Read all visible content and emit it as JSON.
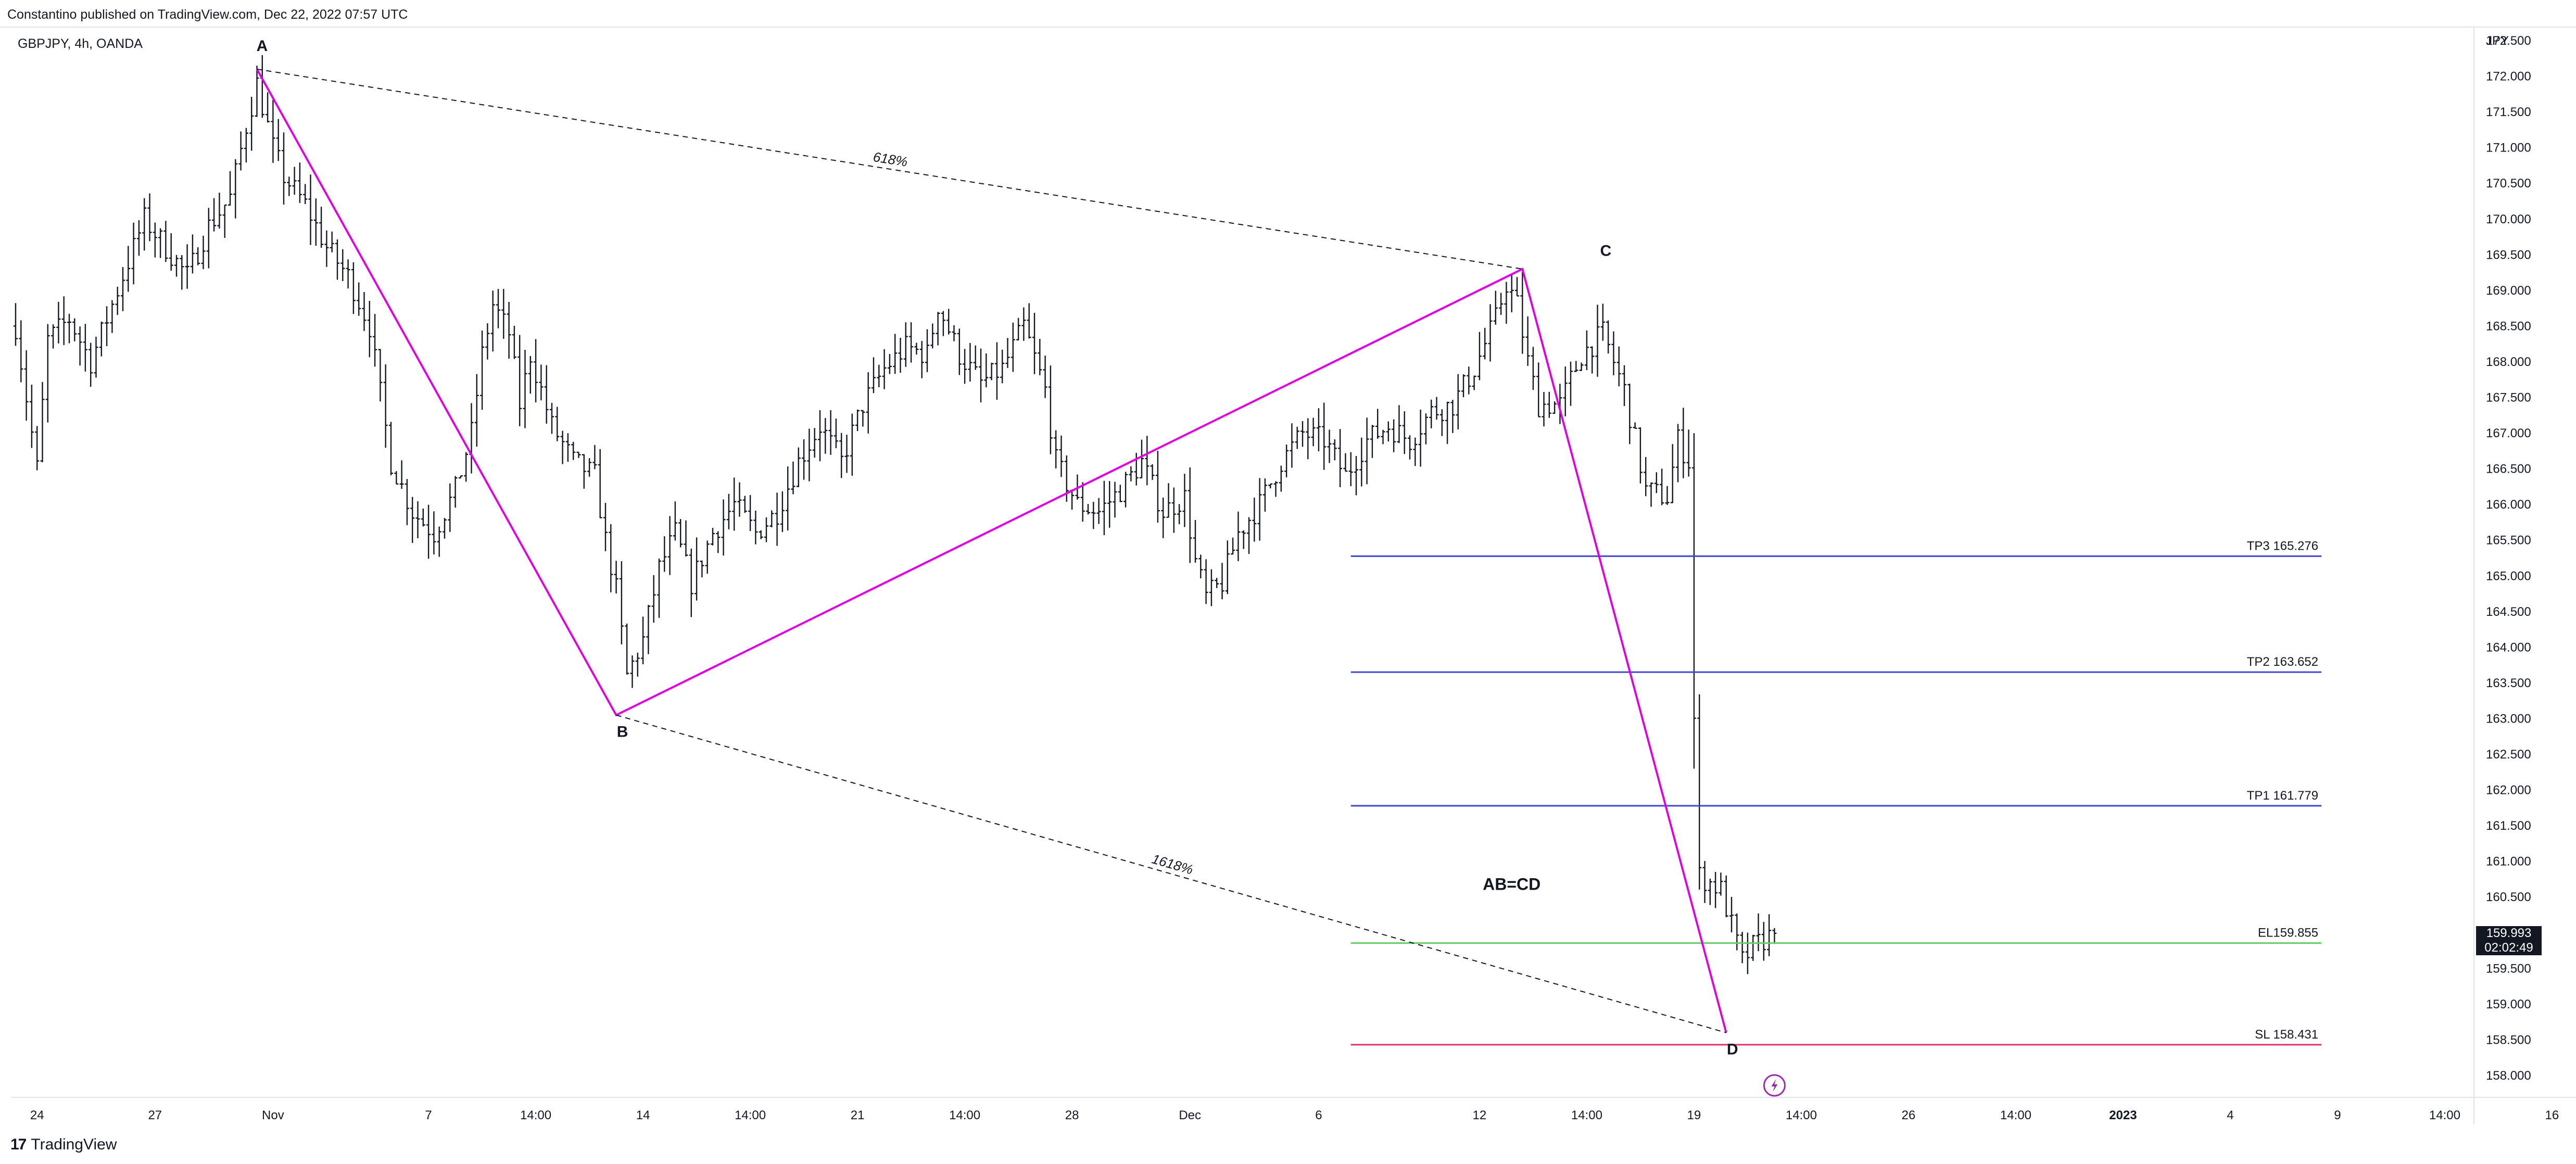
{
  "header": {
    "published": "Constantino published on TradingView.com, Dec 22, 2022 07:57 UTC",
    "symbol": "GBPJPY, 4h, OANDA"
  },
  "footer": {
    "brand": "TradingView",
    "logo": "tradingview-logo"
  },
  "current_price": {
    "value": "159.993",
    "countdown": "02:02:49"
  },
  "chart_data": {
    "type": "ohlc",
    "y_unit": "JPY",
    "ylim": [
      158.0,
      172.5
    ],
    "y_ticks": [
      "172.500",
      "172.000",
      "171.500",
      "171.000",
      "170.500",
      "170.000",
      "169.500",
      "169.000",
      "168.500",
      "168.000",
      "167.500",
      "167.000",
      "166.500",
      "166.000",
      "165.500",
      "165.000",
      "164.500",
      "164.000",
      "163.500",
      "163.000",
      "162.500",
      "162.000",
      "161.500",
      "161.000",
      "160.500",
      "160.000",
      "159.500",
      "159.000",
      "158.500",
      "158.000"
    ],
    "x_ticks": [
      {
        "label": "24",
        "bar": 4
      },
      {
        "label": "27",
        "bar": 26
      },
      {
        "label": "Nov",
        "bar": 48
      },
      {
        "label": "7",
        "bar": 77
      },
      {
        "label": "14:00",
        "bar": 97
      },
      {
        "label": "14",
        "bar": 117
      },
      {
        "label": "14:00",
        "bar": 137
      },
      {
        "label": "21",
        "bar": 157
      },
      {
        "label": "14:00",
        "bar": 177
      },
      {
        "label": "28",
        "bar": 197
      },
      {
        "label": "Dec",
        "bar": 219
      },
      {
        "label": "6",
        "bar": 243
      },
      {
        "label": "12",
        "bar": 273
      },
      {
        "label": "14:00",
        "bar": 293
      },
      {
        "label": "19",
        "bar": 313
      },
      {
        "label": "14:00",
        "bar": 333
      },
      {
        "label": "26",
        "bar": 353
      },
      {
        "label": "14:00",
        "bar": 373
      },
      {
        "label": "2023",
        "bar": 393,
        "bold": true
      },
      {
        "label": "4",
        "bar": 413
      },
      {
        "label": "9",
        "bar": 433
      },
      {
        "label": "14:00",
        "bar": 453
      },
      {
        "label": "16",
        "bar": 473
      },
      {
        "label": "14:00",
        "bar": 493
      }
    ],
    "pattern": {
      "name": "AB=CD",
      "points": [
        {
          "label": "A",
          "bar": 45,
          "price": 172.1
        },
        {
          "label": "B",
          "bar": 112,
          "price": 163.05
        },
        {
          "label": "C",
          "bar": 281,
          "price": 169.3
        },
        {
          "label": "D",
          "bar": 319,
          "price": 158.6
        }
      ],
      "ratios": [
        {
          "label": "618%",
          "from": "A",
          "to": "C"
        },
        {
          "label": "1618%",
          "from": "B",
          "to": "D"
        }
      ]
    },
    "levels": [
      {
        "label": "TP3  165.276",
        "price": 165.276,
        "color": "#3f48cc",
        "bar_start": 249,
        "bar_end": 430
      },
      {
        "label": "TP2 163.652",
        "price": 163.652,
        "color": "#3f48cc",
        "bar_start": 249,
        "bar_end": 430
      },
      {
        "label": "TP1 161.779",
        "price": 161.779,
        "color": "#3f48cc",
        "bar_start": 249,
        "bar_end": 430
      },
      {
        "label": "EL159.855",
        "price": 159.855,
        "color": "#66cc66",
        "bar_start": 249,
        "bar_end": 430
      },
      {
        "label": "SL 158.431",
        "price": 158.431,
        "color": "#e0306b",
        "bar_start": 249,
        "bar_end": 430
      }
    ],
    "anchors": [
      [
        0,
        168.5
      ],
      [
        4,
        166.5
      ],
      [
        6,
        168.3
      ],
      [
        10,
        168.6
      ],
      [
        14,
        168.0
      ],
      [
        18,
        168.8
      ],
      [
        22,
        169.6
      ],
      [
        24,
        170.0
      ],
      [
        28,
        169.6
      ],
      [
        32,
        169.2
      ],
      [
        36,
        169.9
      ],
      [
        40,
        170.3
      ],
      [
        43,
        171.3
      ],
      [
        45,
        171.9
      ],
      [
        48,
        171.0
      ],
      [
        50,
        170.6
      ],
      [
        54,
        170.2
      ],
      [
        58,
        169.6
      ],
      [
        62,
        169.2
      ],
      [
        66,
        168.5
      ],
      [
        70,
        166.6
      ],
      [
        74,
        165.9
      ],
      [
        78,
        165.6
      ],
      [
        82,
        166.2
      ],
      [
        85,
        167.0
      ],
      [
        87,
        168.1
      ],
      [
        89,
        168.8
      ],
      [
        92,
        168.4
      ],
      [
        94,
        167.4
      ],
      [
        96,
        168.1
      ],
      [
        100,
        167.1
      ],
      [
        104,
        166.6
      ],
      [
        108,
        166.4
      ],
      [
        110,
        165.5
      ],
      [
        112,
        164.8
      ],
      [
        114,
        163.6
      ],
      [
        117,
        164.1
      ],
      [
        120,
        165.1
      ],
      [
        123,
        165.6
      ],
      [
        126,
        164.9
      ],
      [
        130,
        165.6
      ],
      [
        134,
        166.0
      ],
      [
        138,
        165.6
      ],
      [
        142,
        165.9
      ],
      [
        146,
        166.6
      ],
      [
        150,
        167.1
      ],
      [
        154,
        166.6
      ],
      [
        158,
        167.4
      ],
      [
        162,
        167.9
      ],
      [
        166,
        168.2
      ],
      [
        170,
        168.1
      ],
      [
        172,
        168.8
      ],
      [
        176,
        168.1
      ],
      [
        180,
        167.7
      ],
      [
        184,
        167.9
      ],
      [
        188,
        168.5
      ],
      [
        192,
        167.6
      ],
      [
        194,
        166.6
      ],
      [
        198,
        166.0
      ],
      [
        202,
        165.9
      ],
      [
        206,
        166.2
      ],
      [
        210,
        166.6
      ],
      [
        214,
        165.9
      ],
      [
        218,
        166.1
      ],
      [
        220,
        165.2
      ],
      [
        222,
        164.7
      ],
      [
        225,
        164.9
      ],
      [
        228,
        165.6
      ],
      [
        232,
        166.0
      ],
      [
        236,
        166.6
      ],
      [
        240,
        167.0
      ],
      [
        244,
        166.9
      ],
      [
        248,
        166.4
      ],
      [
        252,
        166.9
      ],
      [
        256,
        167.1
      ],
      [
        260,
        166.9
      ],
      [
        264,
        167.3
      ],
      [
        268,
        167.4
      ],
      [
        272,
        167.9
      ],
      [
        276,
        168.6
      ],
      [
        278,
        169.1
      ],
      [
        280,
        168.8
      ],
      [
        282,
        168.0
      ],
      [
        284,
        167.4
      ],
      [
        288,
        167.4
      ],
      [
        292,
        168.1
      ],
      [
        296,
        168.4
      ],
      [
        300,
        167.6
      ],
      [
        302,
        166.9
      ],
      [
        304,
        166.2
      ],
      [
        308,
        166.1
      ],
      [
        310,
        166.9
      ],
      [
        312,
        166.6
      ],
      [
        313,
        163.0
      ],
      [
        314,
        160.8
      ],
      [
        318,
        160.6
      ],
      [
        322,
        159.6
      ],
      [
        324,
        159.8
      ],
      [
        326,
        159.9
      ],
      [
        328,
        159.993
      ]
    ]
  }
}
